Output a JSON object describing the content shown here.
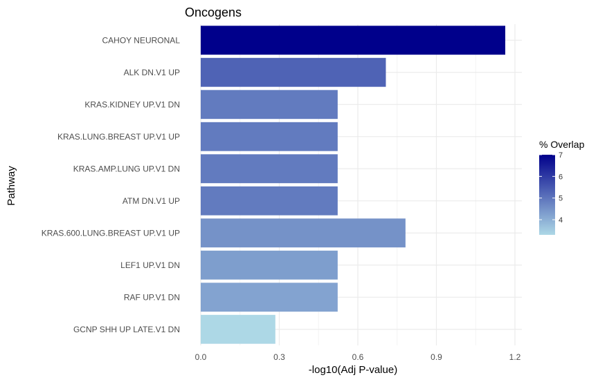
{
  "chart_data": {
    "type": "bar",
    "orientation": "horizontal",
    "title": "Oncogens",
    "xlabel": "-log10(Adj P-value)",
    "ylabel": "Pathway",
    "xlim": [
      0,
      1.24
    ],
    "xticks": [
      0.0,
      0.3,
      0.6,
      0.9,
      1.2
    ],
    "xtick_labels": [
      "0.0",
      "0.3",
      "0.6",
      "0.9",
      "1.2"
    ],
    "grid": true,
    "categories": [
      "CAHOY NEURONAL",
      "ALK DN.V1 UP",
      "KRAS.KIDNEY UP.V1 DN",
      "KRAS.LUNG.BREAST UP.V1 UP",
      "KRAS.AMP.LUNG UP.V1 DN",
      "ATM DN.V1 UP",
      "KRAS.600.LUNG.BREAST UP.V1 UP",
      "LEF1 UP.V1 DN",
      "RAF UP.V1 DN",
      "GCNP SHH UP LATE.V1 DN"
    ],
    "values": [
      1.163,
      0.707,
      0.523,
      0.523,
      0.523,
      0.523,
      0.782,
      0.523,
      0.523,
      0.285
    ],
    "overlap": [
      7.0,
      5.3,
      4.9,
      4.9,
      4.9,
      4.9,
      4.5,
      4.3,
      4.2,
      3.3
    ],
    "legend": {
      "title": "% Overlap",
      "position": "right",
      "range": [
        3.3,
        7.0
      ],
      "ticks": [
        4,
        5,
        6,
        7
      ],
      "tick_labels": [
        "4",
        "5",
        "6",
        "7"
      ],
      "low_color": "#ADD8E6",
      "high_color": "#00008B"
    },
    "colors": {
      "grid_major": "#ebebeb",
      "grid_minor": "#f4f4f4"
    }
  }
}
